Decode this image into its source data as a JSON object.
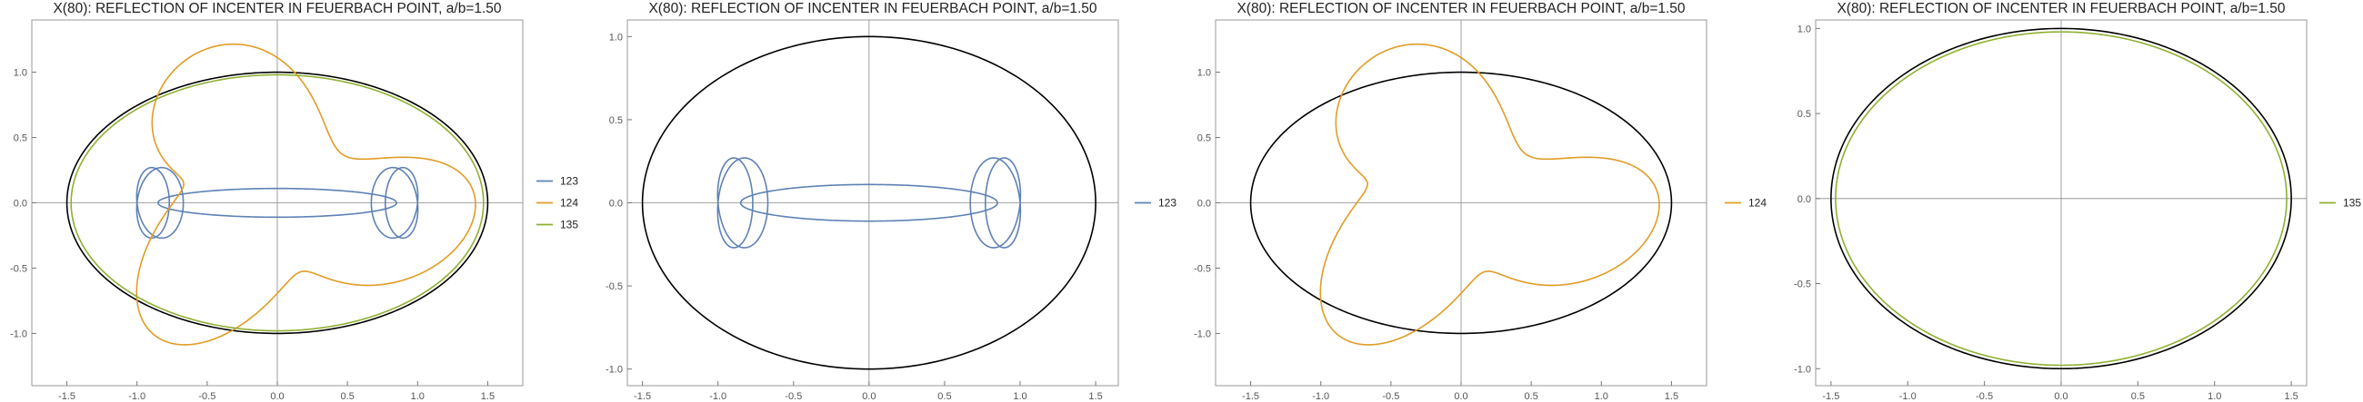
{
  "chart_data": [
    {
      "type": "line",
      "title": "X(80): REFLECTION OF INCENTER IN FEUERBACH POINT, a/b=1.50",
      "xlim": [
        -1.75,
        1.75
      ],
      "ylim": [
        -1.4,
        1.4
      ],
      "xticks": [
        "-1.5",
        "-1.0",
        "-0.5",
        "0.0",
        "0.5",
        "1.0",
        "1.5"
      ],
      "yticks": [
        "-1.0",
        "-0.5",
        "0.0",
        "0.5",
        "1.0"
      ],
      "grid": false,
      "legend_position": "right",
      "reference_ellipse": {
        "a": 1.5,
        "b": 1.0,
        "color": "#000000"
      },
      "series": [
        {
          "name": "123",
          "color": "#5E81B5",
          "shape": "bow"
        },
        {
          "name": "124",
          "color": "#E19C24",
          "shape": "swirl"
        },
        {
          "name": "135",
          "color": "#8FB032",
          "shape": "ellipse"
        }
      ]
    },
    {
      "type": "line",
      "title": "X(80): REFLECTION OF INCENTER IN FEUERBACH POINT, a/b=1.50",
      "xlim": [
        -1.6,
        1.65
      ],
      "ylim": [
        -1.1,
        1.1
      ],
      "xticks": [
        "-1.5",
        "-1.0",
        "-0.5",
        "0.0",
        "0.5",
        "1.0",
        "1.5"
      ],
      "yticks": [
        "-1.0",
        "-0.5",
        "0.0",
        "0.5",
        "1.0"
      ],
      "grid": false,
      "legend_position": "right",
      "reference_ellipse": {
        "a": 1.5,
        "b": 1.0,
        "color": "#000000"
      },
      "series": [
        {
          "name": "123",
          "color": "#5E81B5",
          "shape": "bow"
        }
      ]
    },
    {
      "type": "line",
      "title": "X(80): REFLECTION OF INCENTER IN FEUERBACH POINT, a/b=1.50",
      "xlim": [
        -1.75,
        1.75
      ],
      "ylim": [
        -1.4,
        1.4
      ],
      "xticks": [
        "-1.5",
        "-1.0",
        "-0.5",
        "0.0",
        "0.5",
        "1.0",
        "1.5"
      ],
      "yticks": [
        "-1.0",
        "-0.5",
        "0.0",
        "0.5",
        "1.0"
      ],
      "grid": false,
      "legend_position": "right",
      "reference_ellipse": {
        "a": 1.5,
        "b": 1.0,
        "color": "#000000"
      },
      "series": [
        {
          "name": "124",
          "color": "#E19C24",
          "shape": "swirl"
        }
      ]
    },
    {
      "type": "line",
      "title": "X(80): REFLECTION OF INCENTER IN FEUERBACH POINT, a/b=1.50",
      "xlim": [
        -1.6,
        1.6
      ],
      "ylim": [
        -1.1,
        1.05
      ],
      "xticks": [
        "-1.5",
        "-1.0",
        "-0.5",
        "0.0",
        "0.5",
        "1.0",
        "1.5"
      ],
      "yticks": [
        "-1.0",
        "-0.5",
        "0.0",
        "0.5",
        "1.0"
      ],
      "grid": false,
      "legend_position": "right",
      "reference_ellipse": {
        "a": 1.5,
        "b": 1.0,
        "color": "#000000"
      },
      "series": [
        {
          "name": "135",
          "color": "#8FB032",
          "shape": "ellipse"
        }
      ]
    }
  ]
}
